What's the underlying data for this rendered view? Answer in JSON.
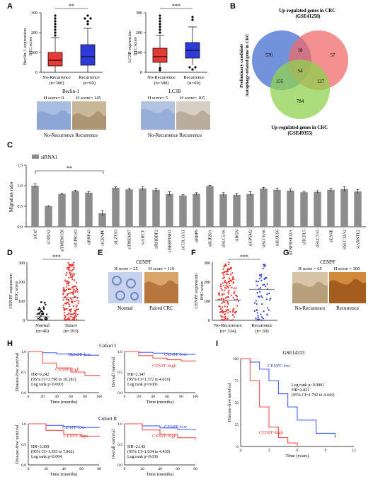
{
  "panel_letters": [
    "A",
    "B",
    "C",
    "D",
    "E",
    "F",
    "G",
    "H",
    "I"
  ],
  "colors": {
    "red": "#e53935",
    "blue": "#2f3bd6",
    "grey": "#8c8c8c",
    "venn_blue": "#5b7fd6",
    "venn_red": "#ef6b6b",
    "venn_green": "#8fd14f",
    "km_red": "#ff4a4a",
    "km_blue": "#4a5cff"
  },
  "panel_a": {
    "box1": {
      "ylabel": "Beclin-1 expression\nIHC score",
      "ticks": [
        "0",
        "100",
        "200",
        "300"
      ],
      "categories": [
        "No-Recurrence\n(n=300)",
        "Recurrence\n(n=69)"
      ],
      "sig": "**",
      "title": "Beclin-1",
      "h_scores": [
        "H score= 0",
        "H score= 145"
      ],
      "img_labels": [
        "No-Recurrence",
        "Recurrence"
      ]
    },
    "box2": {
      "ylabel": "LC3B expression\nIHC score",
      "ticks": [
        "0",
        "100",
        "200",
        "300"
      ],
      "categories": [
        "No-Recurrence\n(n=300)",
        "Recurrence\n(n=69)"
      ],
      "sig": "***",
      "title": "LC3B",
      "h_scores": [
        "H score= 5",
        "H score= 105"
      ],
      "img_labels": [
        "No-Recurrence",
        "Recurrence"
      ]
    }
  },
  "panel_b": {
    "top_label": "Up-regulated genes in CRC\n(GSE41258)",
    "left_label": "Preliminary candidate\nAutophagy-related gene in CRC",
    "bottom_label": "Up-regulated genes in CRC\n(GSE49355)",
    "numbers": [
      "570",
      "18",
      "57",
      "54",
      "155",
      "137",
      "784"
    ]
  },
  "panel_c": {
    "legend": "siRNA1",
    "ylabel": "Migration ratio",
    "sig": "**",
    "yticks": [
      "0.0",
      "0.5",
      "1.0",
      "1.5"
    ],
    "categories": [
      "siCtrl",
      "sI100A2",
      "siTMEM158",
      "siGPR143",
      "siRNF43",
      "siCENPF",
      "siLZTS3",
      "siTMEM97",
      "siAHCY",
      "siRHBDF2",
      "siSERPINH1",
      "siCOL11A1",
      "siRBP9",
      "siKIF20A",
      "siSLC5A6",
      "siBGN",
      "siGPSM2",
      "siSLC6A6",
      "siHAUS6",
      "siTNFRSF12A",
      "siTCFL5",
      "siSLC7A5",
      "siLY6E",
      "siSLC12A2",
      "siARNTL2"
    ]
  },
  "panel_d": {
    "ylabel": "CENPF expression\nIHC score",
    "ticks": [
      "0",
      "100",
      "200",
      "300"
    ],
    "categories": [
      "Normal\n(n=40)",
      "Tumor\n(n=393)"
    ],
    "sig": "***"
  },
  "panel_e": {
    "title": "CENPF",
    "h_scores": [
      "H score = 25",
      "H score = 110"
    ],
    "img_labels": [
      "Normal",
      "Paired CRC"
    ]
  },
  "panel_f": {
    "ylabel": "CENPF expression\nIHC score",
    "ticks": [
      "0",
      "100",
      "200",
      "300"
    ],
    "categories": [
      "No-Recurrence\n(n= 324)",
      "Recurrence\n(n= 69)"
    ],
    "sig": "***"
  },
  "panel_g": {
    "title": "CENPF",
    "h_scores": [
      "H score = 65",
      "H score = 300"
    ],
    "img_labels": [
      "No-Recurrence",
      "Recurrence"
    ]
  },
  "panel_h": {
    "cohort1": "Cohort I",
    "cohort2": "Cohort II",
    "xlabel": "Time (months)",
    "plots": [
      {
        "ylabel": "Disease-free survival",
        "low": "CENPF-low",
        "high": "CENPF-high",
        "stats": [
          "HR=6.242",
          "(95% CI=3.790 to 10.281)",
          "Log rank p<0.0001"
        ],
        "xticks": [
          "0",
          "20",
          "40",
          "60",
          "80",
          "100"
        ],
        "yticks": [
          "0.0",
          "0.5",
          "1.0"
        ]
      },
      {
        "ylabel": "Overall survival",
        "low": "CENPF-low",
        "high": "CENPF-high",
        "stats": [
          "HR=2.347",
          "(95% CI=1.372 to 4.016)",
          "Log rank p=0.001"
        ],
        "xticks": [
          "0",
          "20",
          "40",
          "60",
          "80",
          "100"
        ],
        "yticks": [
          "0.0",
          "0.5",
          "1.0"
        ]
      },
      {
        "ylabel": "Disease-free survival",
        "low": "CENPF-low",
        "high": "CENPF-high",
        "stats": [
          "HR=3.309",
          "(95% CI=1.393 to 7.862)",
          "Log rank p=0.004"
        ],
        "xticks": [
          "0",
          "20",
          "40",
          "60",
          "80"
        ],
        "yticks": [
          "0.0",
          "0.5",
          "1.0"
        ]
      },
      {
        "ylabel": "Overall survival",
        "low": "CENPF-low",
        "high": "CENPF-high",
        "stats": [
          "HR=2.142",
          "(95% CI=1.034 to 4.439)",
          "Log rank p=0.036"
        ],
        "xticks": [
          "0",
          "20",
          "40",
          "60",
          "80"
        ],
        "yticks": [
          "0.0",
          "0.5",
          "1.0"
        ]
      }
    ]
  },
  "panel_i": {
    "title": "GSE14333",
    "ylabel": "Disease-free survival",
    "xlabel": "Time (years)",
    "low": "CENPF-low",
    "high": "CENPF-high",
    "stats": [
      "Log rank p<0.0001",
      "HR=2.821",
      "(95% CI=1.792 to 4.441)"
    ],
    "xticks": [
      "0",
      "3",
      "6",
      "9",
      "12"
    ],
    "yticks": [
      "0",
      "25",
      "50",
      "75",
      "100"
    ]
  },
  "chart_data": [
    {
      "type": "bar",
      "panel": "C",
      "categories": [
        "siCtrl",
        "sI100A2",
        "siTMEM158",
        "siGPR143",
        "siRNF43",
        "siCENPF",
        "siLZTS3",
        "siTMEM97",
        "siAHCY",
        "siRHBDF2",
        "siSERPINH1",
        "siCOL11A1",
        "siRBP9",
        "siKIF20A",
        "siSLC5A6",
        "siBGN",
        "siGPSM2",
        "siSLC6A6",
        "siHAUS6",
        "siTNFRSF12A",
        "siTCFL5",
        "siSLC7A5",
        "siLY6E",
        "siSLC12A2",
        "siARNTL2"
      ],
      "values": [
        1.0,
        0.5,
        0.8,
        0.87,
        0.83,
        0.33,
        0.95,
        0.91,
        0.93,
        0.9,
        0.8,
        0.76,
        0.8,
        0.99,
        0.79,
        0.78,
        0.8,
        0.93,
        0.9,
        0.88,
        0.84,
        0.85,
        0.9,
        0.92,
        0.86
      ],
      "errors": [
        0.04,
        0.01,
        0.02,
        0.02,
        0.02,
        0.06,
        0.02,
        0.03,
        0.04,
        0.04,
        0.05,
        0.02,
        0.03,
        0.02,
        0.04,
        0.03,
        0.05,
        0.03,
        0.04,
        0.04,
        0.02,
        0.03,
        0.04,
        0.06,
        0.05
      ],
      "ylabel": "Migration ratio",
      "ylim": [
        0,
        1.5
      ]
    },
    {
      "type": "box",
      "panel": "A-Beclin-1",
      "ylabel": "Beclin-1 expression IHC score",
      "categories": [
        "No-Recurrence (n=300)",
        "Recurrence (n=69)"
      ],
      "q1": [
        30,
        35
      ],
      "median": [
        60,
        80
      ],
      "q3": [
        100,
        140
      ],
      "whisker_low": [
        0,
        0
      ],
      "whisker_high": [
        190,
        220
      ],
      "ylim": [
        0,
        300
      ]
    },
    {
      "type": "box",
      "panel": "A-LC3B",
      "ylabel": "LC3B expression IHC score",
      "categories": [
        "No-Recurrence (n=300)",
        "Recurrence (n=69)"
      ],
      "q1": [
        45,
        70
      ],
      "median": [
        80,
        110
      ],
      "q3": [
        120,
        150
      ],
      "whisker_low": [
        10,
        15
      ],
      "whisker_high": [
        200,
        230
      ],
      "ylim": [
        0,
        300
      ]
    },
    {
      "type": "scatter",
      "panel": "D",
      "ylabel": "CENPF expression IHC score",
      "categories": [
        "Normal (n=40)",
        "Tumor (n=393)"
      ],
      "means": [
        18,
        118
      ],
      "ylim": [
        0,
        300
      ]
    },
    {
      "type": "scatter",
      "panel": "F",
      "ylabel": "CENPF expression IHC score",
      "categories": [
        "No-Recurrence (n= 324)",
        "Recurrence (n= 69)"
      ],
      "means": [
        105,
        160
      ],
      "ylim": [
        0,
        300
      ]
    },
    {
      "type": "line",
      "panel": "H-Cohort I DFS",
      "series": [
        {
          "name": "CENPF-low",
          "x": [
            0,
            20,
            40,
            60,
            80,
            100
          ],
          "y": [
            1.0,
            0.97,
            0.94,
            0.92,
            0.91,
            0.91
          ]
        },
        {
          "name": "CENPF-high",
          "x": [
            0,
            20,
            40,
            60,
            80,
            100
          ],
          "y": [
            1.0,
            0.72,
            0.6,
            0.5,
            0.42,
            0.4
          ]
        }
      ],
      "xlabel": "Time (months)",
      "ylabel": "Disease-free survival",
      "ylim": [
        0,
        1
      ]
    },
    {
      "type": "line",
      "panel": "H-Cohort I OS",
      "series": [
        {
          "name": "CENPF-low",
          "x": [
            0,
            20,
            40,
            60,
            80,
            100
          ],
          "y": [
            1.0,
            0.98,
            0.96,
            0.94,
            0.93,
            0.93
          ]
        },
        {
          "name": "CENPF-high",
          "x": [
            0,
            20,
            40,
            60,
            80,
            100
          ],
          "y": [
            1.0,
            0.9,
            0.84,
            0.8,
            0.77,
            0.76
          ]
        }
      ],
      "xlabel": "Time (months)",
      "ylabel": "Overall survival",
      "ylim": [
        0,
        1
      ]
    },
    {
      "type": "line",
      "panel": "H-Cohort II DFS",
      "series": [
        {
          "name": "CENPF-low",
          "x": [
            0,
            20,
            40,
            60,
            80
          ],
          "y": [
            1.0,
            0.96,
            0.93,
            0.91,
            0.9
          ]
        },
        {
          "name": "CENPF-high",
          "x": [
            0,
            20,
            40,
            60,
            80
          ],
          "y": [
            1.0,
            0.84,
            0.74,
            0.7,
            0.68
          ]
        }
      ],
      "xlabel": "Time (months)",
      "ylabel": "Disease-free survival",
      "ylim": [
        0,
        1
      ]
    },
    {
      "type": "line",
      "panel": "H-Cohort II OS",
      "series": [
        {
          "name": "CENPF-low",
          "x": [
            0,
            20,
            40,
            60,
            80
          ],
          "y": [
            1.0,
            0.95,
            0.9,
            0.86,
            0.84
          ]
        },
        {
          "name": "CENPF-high",
          "x": [
            0,
            20,
            40,
            60,
            80
          ],
          "y": [
            1.0,
            0.85,
            0.74,
            0.66,
            0.62
          ]
        }
      ],
      "xlabel": "Time (months)",
      "ylabel": "Overall survival",
      "ylim": [
        0,
        1
      ]
    },
    {
      "type": "line",
      "panel": "I",
      "series": [
        {
          "name": "CENPF-low",
          "x": [
            0,
            1,
            2,
            3,
            4,
            5,
            6,
            8,
            10
          ],
          "y": [
            100,
            96,
            88,
            75,
            60,
            45,
            30,
            15,
            10
          ]
        },
        {
          "name": "CENPF-high",
          "x": [
            0,
            1,
            2,
            3,
            4,
            5,
            6
          ],
          "y": [
            100,
            75,
            45,
            22,
            10,
            4,
            0
          ]
        }
      ],
      "xlabel": "Time (years)",
      "ylabel": "Disease-free survival",
      "ylim": [
        0,
        100
      ]
    }
  ]
}
